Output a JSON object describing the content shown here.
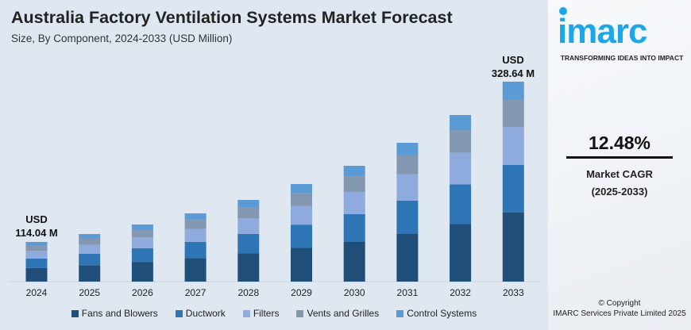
{
  "chart_data": {
    "type": "bar",
    "stacked": true,
    "title": "Australia Factory Ventilation Systems Market Forecast",
    "subtitle": "Size, By Component, 2024-2033 (USD Million)",
    "categories": [
      "2024",
      "2025",
      "2026",
      "2027",
      "2028",
      "2029",
      "2030",
      "2031",
      "2032",
      "2033"
    ],
    "totals": [
      114.04,
      124.6,
      137.4,
      152.3,
      170.3,
      191.6,
      216.0,
      246.8,
      284.0,
      328.64
    ],
    "series": [
      {
        "name": "Fans and Blowers",
        "color": "#1f4e79",
        "values": [
          39.3,
          43.0,
          47.4,
          52.5,
          58.8,
          66.1,
          74.5,
          85.1,
          98.0,
          113.4
        ]
      },
      {
        "name": "Ductwork",
        "color": "#2e75b6",
        "values": [
          27.1,
          29.7,
          32.7,
          36.2,
          40.5,
          45.6,
          51.4,
          58.7,
          67.6,
          78.2
        ]
      },
      {
        "name": "Filters",
        "color": "#8faadc",
        "values": [
          21.7,
          23.7,
          26.1,
          28.9,
          32.4,
          36.4,
          41.0,
          46.9,
          54.0,
          62.4
        ]
      },
      {
        "name": "Vents and Grilles",
        "color": "#8497b0",
        "values": [
          15.4,
          16.8,
          18.5,
          20.6,
          23.0,
          25.9,
          29.2,
          33.3,
          38.3,
          44.4
        ]
      },
      {
        "name": "Control Systems",
        "color": "#5b9bd5",
        "values": [
          10.4,
          11.3,
          12.5,
          13.9,
          15.5,
          17.4,
          19.7,
          22.5,
          25.8,
          29.9
        ]
      }
    ],
    "annotations": [
      {
        "category": "2024",
        "line1": "USD",
        "line2": "114.04 M"
      },
      {
        "category": "2033",
        "line1": "USD",
        "line2": "328.64 M"
      }
    ],
    "legend": "bottom",
    "grid": false
  },
  "brand": {
    "logo": "imarc",
    "tagline": "TRANSFORMING IDEAS INTO IMPACT",
    "color": "#1ea7e8"
  },
  "cagr": {
    "value": "12.48%",
    "label": "Market CAGR",
    "period": "(2025-2033)"
  },
  "copyright": {
    "line1": "© Copyright",
    "line2": "IMARC Services Private Limited 2025"
  }
}
